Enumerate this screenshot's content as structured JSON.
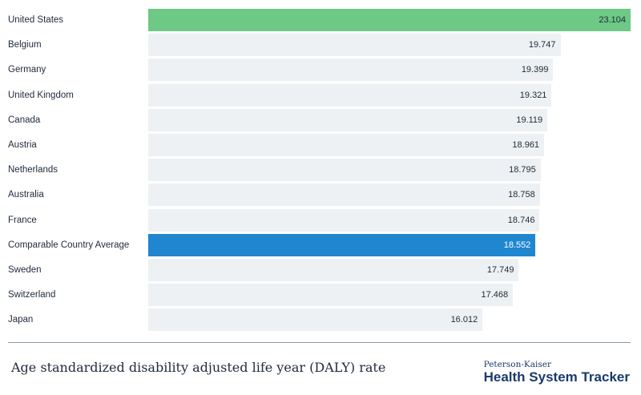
{
  "chart_data": {
    "type": "bar",
    "orientation": "horizontal",
    "title": "Age standardized disability adjusted life year (DALY) rate",
    "categories": [
      "United States",
      "Belgium",
      "Germany",
      "United Kingdom",
      "Canada",
      "Austria",
      "Netherlands",
      "Australia",
      "France",
      "Comparable Country Average",
      "Sweden",
      "Switzerland",
      "Japan"
    ],
    "values": [
      23.104,
      19.747,
      19.399,
      19.321,
      19.119,
      18.961,
      18.795,
      18.758,
      18.746,
      18.552,
      17.749,
      17.468,
      16.012
    ],
    "value_labels": [
      "23.104",
      "19.747",
      "19.399",
      "19.321",
      "19.119",
      "18.961",
      "18.795",
      "18.758",
      "18.746",
      "18.552",
      "17.749",
      "17.468",
      "16.012"
    ],
    "highlights": {
      "United States": "#6dc985",
      "Comparable Country Average": "#1f86cf"
    },
    "default_color": "#edf1f3",
    "xlim": [
      0,
      23.104
    ]
  },
  "footer": {
    "title": "Age standardized disability adjusted life year (DALY) rate",
    "brand_small": "Peterson-Kaiser",
    "brand_big": "Health System Tracker"
  }
}
